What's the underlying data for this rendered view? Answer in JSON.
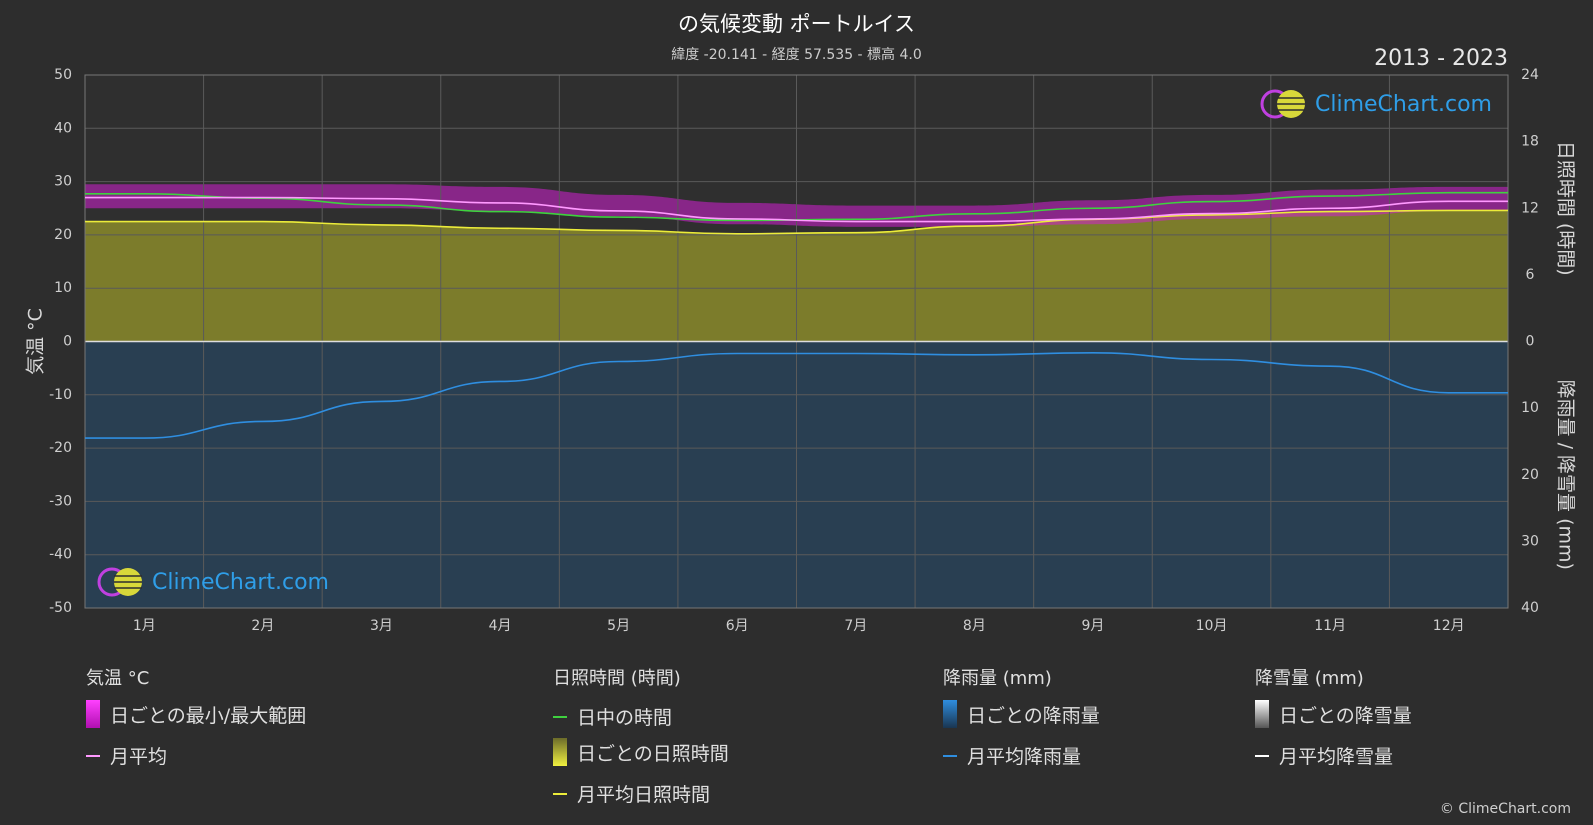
{
  "header": {
    "title": "の気候変動 ポートルイス",
    "subtitle": "緯度 -20.141 - 経度 57.535 - 標高 4.0",
    "years": "2013 - 2023"
  },
  "brand": {
    "name": "ClimeChart.com",
    "copyright": "© ClimeChart.com"
  },
  "legend": {
    "temperature": {
      "heading": "気温 °C",
      "range": "日ごとの最小/最大範囲",
      "mean": "月平均"
    },
    "sunshine": {
      "heading": "日照時間 (時間)",
      "daylight": "日中の時間",
      "daily": "日ごとの日照時間",
      "mean": "月平均日照時間"
    },
    "rain": {
      "heading": "降雨量 (mm)",
      "daily": "日ごとの降雨量",
      "mean": "月平均降雨量"
    },
    "snow": {
      "heading": "降雪量 (mm)",
      "daily": "日ごとの降雪量",
      "mean": "月平均降雪量"
    }
  },
  "colors": {
    "background": "#2d2d2d",
    "temp_range": "#d21fd2",
    "temp_mean": "#ff99ff",
    "daylight": "#3fd13f",
    "sunshine_fill": "#8a8a2a",
    "sunshine_mean": "#ecec3a",
    "rain_fill": "#1f5f96",
    "rain_mean": "#2f8ee0",
    "snow_mean": "#ffffff"
  },
  "chart_data": {
    "type": "line",
    "title": "の気候変動 ポートルイス",
    "x_categories": [
      "1月",
      "2月",
      "3月",
      "4月",
      "5月",
      "6月",
      "7月",
      "8月",
      "9月",
      "10月",
      "11月",
      "12月"
    ],
    "y_left": {
      "label": "気温 °C",
      "range": [
        -50,
        50
      ],
      "ticks": [
        50,
        40,
        30,
        20,
        10,
        0,
        -10,
        -20,
        -30,
        -40,
        -50
      ]
    },
    "y_right_top": {
      "label": "日照時間 (時間)",
      "range": [
        0,
        24
      ],
      "ticks": [
        24,
        18,
        12,
        6,
        0
      ]
    },
    "y_right_bottom": {
      "label": "降雨量 / 降雪量 (mm)",
      "range": [
        0,
        40
      ],
      "ticks": [
        0,
        10,
        20,
        30,
        40
      ]
    },
    "grid": true,
    "series": [
      {
        "name": "日ごとの最小/最大範囲",
        "axis": "temperature",
        "type": "band",
        "min": [
          25.0,
          25.0,
          25.0,
          24.5,
          23.5,
          22.0,
          21.5,
          21.5,
          22.0,
          23.0,
          23.5,
          24.5
        ],
        "max": [
          29.5,
          29.5,
          29.5,
          29.0,
          27.5,
          26.0,
          25.5,
          25.5,
          26.5,
          27.5,
          28.5,
          29.0
        ]
      },
      {
        "name": "月平均",
        "axis": "temperature",
        "values": [
          27.0,
          27.0,
          26.8,
          26.0,
          24.5,
          23.0,
          22.5,
          22.5,
          23.0,
          24.0,
          25.0,
          26.3
        ]
      },
      {
        "name": "日中の時間",
        "axis": "sunshine",
        "values": [
          13.3,
          12.9,
          12.3,
          11.7,
          11.2,
          10.9,
          11.0,
          11.5,
          12.0,
          12.6,
          13.1,
          13.4
        ]
      },
      {
        "name": "月平均日照時間",
        "axis": "sunshine",
        "values": [
          10.8,
          10.8,
          10.5,
          10.2,
          10.0,
          9.7,
          9.8,
          10.4,
          11.0,
          11.4,
          11.7,
          11.8
        ]
      },
      {
        "name": "月平均降雨量",
        "axis": "rain",
        "values": [
          14.5,
          12.0,
          9.0,
          6.0,
          3.0,
          1.8,
          1.8,
          2.0,
          1.7,
          2.7,
          3.7,
          7.7
        ]
      },
      {
        "name": "月平均降雪量",
        "axis": "rain",
        "values": [
          0,
          0,
          0,
          0,
          0,
          0,
          0,
          0,
          0,
          0,
          0,
          0
        ]
      }
    ]
  }
}
